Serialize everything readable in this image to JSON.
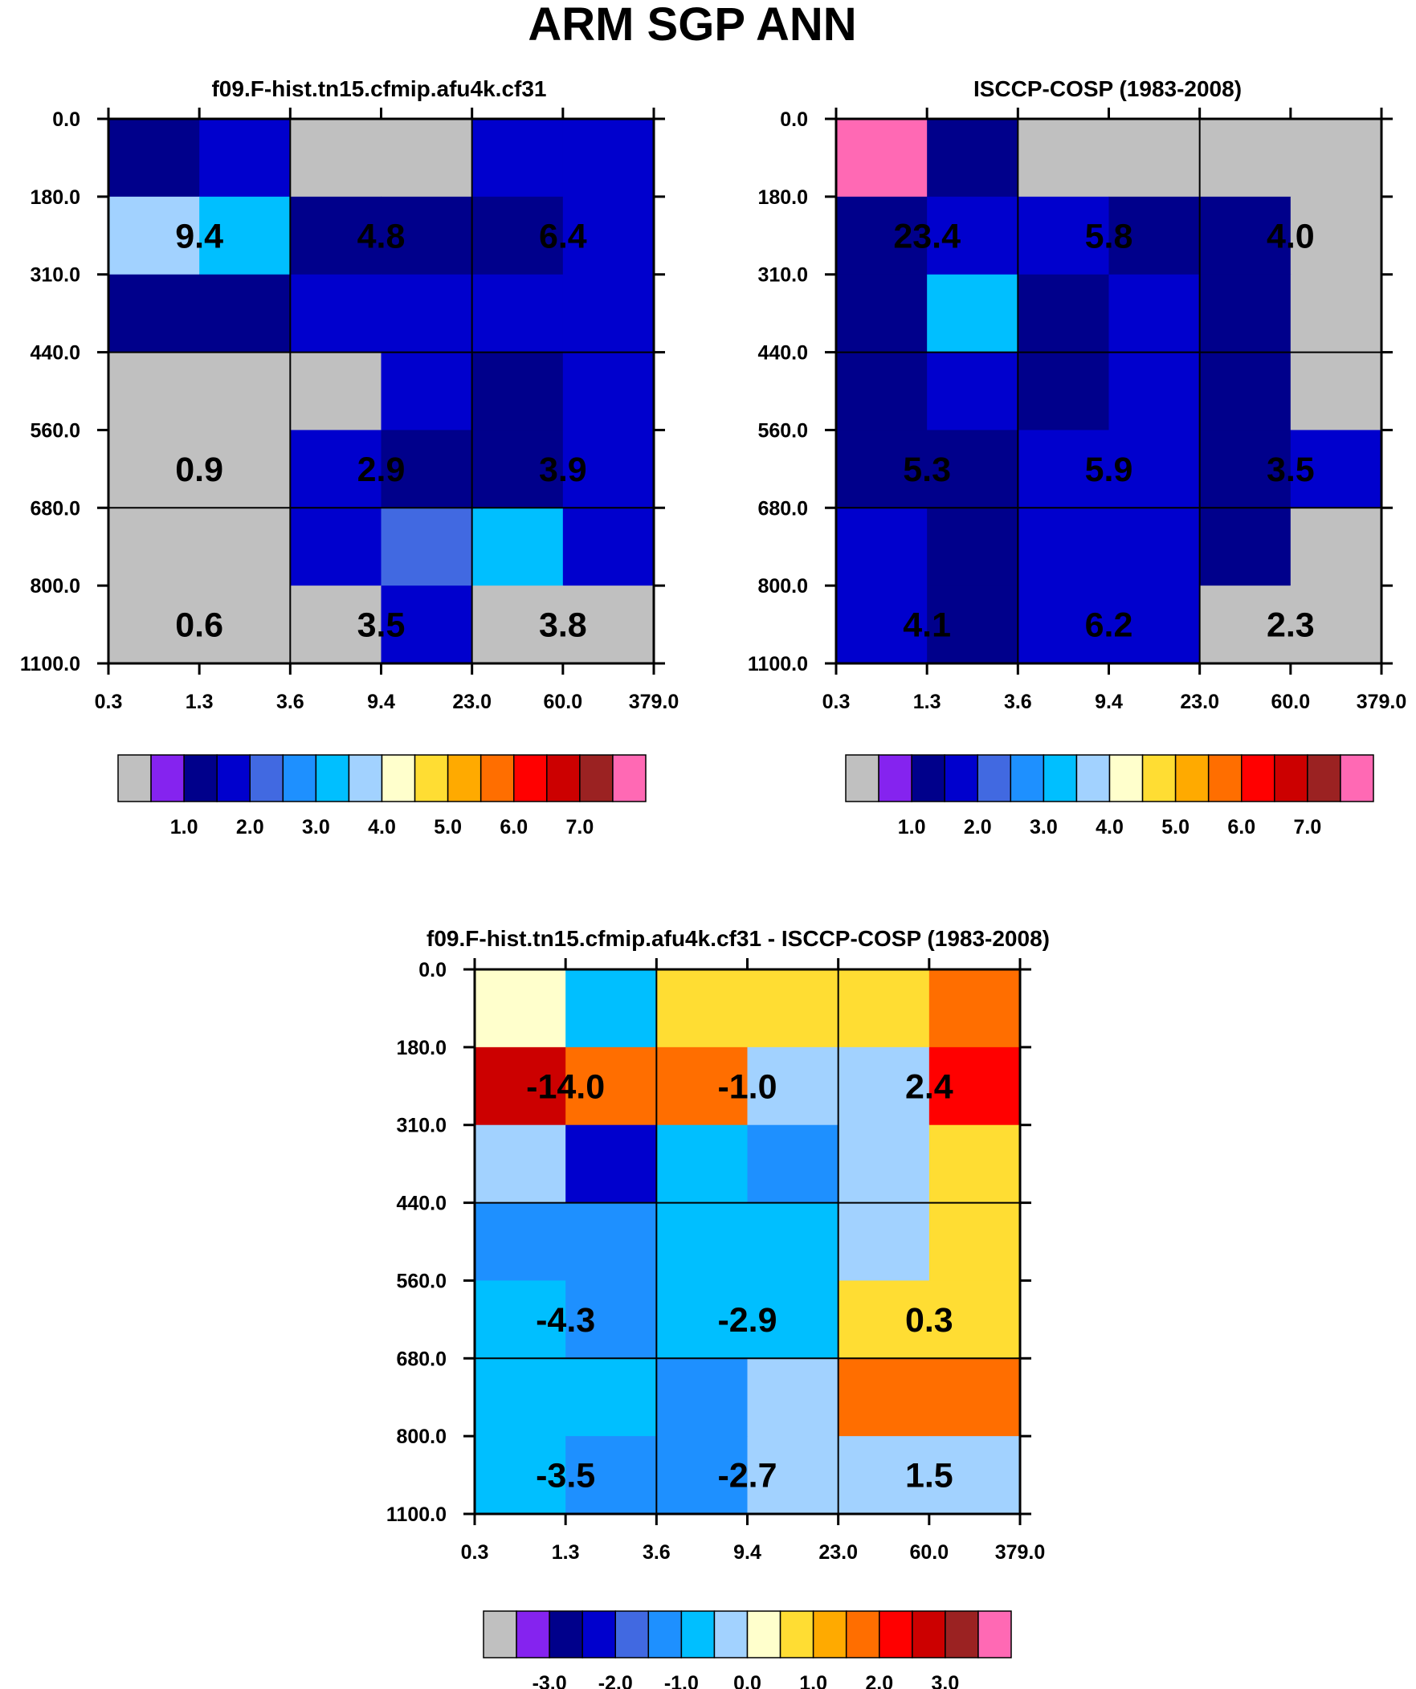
{
  "figure": {
    "title": "ARM SGP ANN"
  },
  "colorbar_colors": [
    "#c0c0c0",
    "#8523ef",
    "#00008b",
    "#0000cd",
    "#4169e1",
    "#1e90ff",
    "#00bfff",
    "#a2d2ff",
    "#ffffcc",
    "#ffdd33",
    "#ffaa00",
    "#ff6e00",
    "#ff0000",
    "#cc0000",
    "#9b2222",
    "#ff69b4"
  ],
  "chart_data": [
    {
      "type": "heatmap",
      "title": "f09.F-hist.tn15.cfmip.afu4k.cf31",
      "x_ticks": [
        "0.3",
        "1.3",
        "3.6",
        "9.4",
        "23.0",
        "60.0",
        "379.0"
      ],
      "y_ticks": [
        "0.0",
        "180.0",
        "310.0",
        "440.0",
        "560.0",
        "680.0",
        "800.0",
        "1100.0"
      ],
      "xlabel": "",
      "ylabel": "",
      "cells": [
        [
          0.6,
          1.0,
          0.0,
          0.0,
          1.0,
          1.0
        ],
        [
          3.2,
          2.6,
          0.6,
          0.6,
          0.5,
          1.2
        ],
        [
          0.6,
          0.6,
          1.0,
          1.0,
          1.0,
          1.0
        ],
        [
          0.0,
          0.0,
          0.0,
          1.0,
          0.6,
          1.0
        ],
        [
          0.0,
          0.0,
          1.0,
          0.6,
          0.6,
          1.0
        ],
        [
          0.0,
          0.0,
          1.0,
          1.5,
          2.5,
          1.0
        ],
        [
          0.0,
          0.0,
          0.0,
          1.0,
          0.0,
          0.0
        ]
      ],
      "block_labels": [
        {
          "row": 1,
          "col": 1,
          "text": "9.4"
        },
        {
          "row": 1,
          "col": 3,
          "text": "4.8"
        },
        {
          "row": 1,
          "col": 5,
          "text": "6.4"
        },
        {
          "row": 4,
          "col": 1,
          "text": "0.9"
        },
        {
          "row": 4,
          "col": 3,
          "text": "2.9"
        },
        {
          "row": 4,
          "col": 5,
          "text": "3.9"
        },
        {
          "row": 6,
          "col": 1,
          "text": "0.6"
        },
        {
          "row": 6,
          "col": 3,
          "text": "3.5"
        },
        {
          "row": 6,
          "col": 5,
          "text": "3.8"
        }
      ],
      "colorbar_labels": [
        "1.0",
        "2.0",
        "3.0",
        "4.0",
        "5.0",
        "6.0",
        "7.0"
      ]
    },
    {
      "type": "heatmap",
      "title": "ISCCP-COSP (1983-2008)",
      "x_ticks": [
        "0.3",
        "1.3",
        "3.6",
        "9.4",
        "23.0",
        "60.0",
        "379.0"
      ],
      "y_ticks": [
        "0.0",
        "180.0",
        "310.0",
        "440.0",
        "560.0",
        "680.0",
        "800.0",
        "1100.0"
      ],
      "xlabel": "",
      "ylabel": "",
      "cells": [
        [
          9.0,
          0.6,
          0.0,
          0.0,
          0.0,
          0.0
        ],
        [
          0.6,
          1.2,
          1.0,
          0.6,
          0.6,
          0.0
        ],
        [
          0.6,
          2.6,
          0.6,
          1.2,
          0.6,
          0.0
        ],
        [
          0.6,
          1.2,
          0.6,
          1.2,
          0.6,
          0.0
        ],
        [
          0.6,
          0.6,
          1.2,
          1.2,
          0.6,
          1.0
        ],
        [
          1.0,
          0.6,
          1.2,
          1.2,
          0.6,
          0.0
        ],
        [
          1.0,
          0.6,
          1.2,
          1.0,
          0.0,
          0.0
        ]
      ],
      "block_labels": [
        {
          "row": 1,
          "col": 1,
          "text": "23.4"
        },
        {
          "row": 1,
          "col": 3,
          "text": "5.8"
        },
        {
          "row": 1,
          "col": 5,
          "text": "4.0"
        },
        {
          "row": 4,
          "col": 1,
          "text": "5.3"
        },
        {
          "row": 4,
          "col": 3,
          "text": "5.9"
        },
        {
          "row": 4,
          "col": 5,
          "text": "3.5"
        },
        {
          "row": 6,
          "col": 1,
          "text": "4.1"
        },
        {
          "row": 6,
          "col": 3,
          "text": "6.2"
        },
        {
          "row": 6,
          "col": 5,
          "text": "2.3"
        }
      ],
      "colorbar_labels": [
        "1.0",
        "2.0",
        "3.0",
        "4.0",
        "5.0",
        "6.0",
        "7.0"
      ]
    },
    {
      "type": "heatmap",
      "title": "f09.F-hist.tn15.cfmip.afu4k.cf31 - ISCCP-COSP (1983-2008)",
      "x_ticks": [
        "0.3",
        "1.3",
        "3.6",
        "9.4",
        "23.0",
        "60.0",
        "379.0"
      ],
      "y_ticks": [
        "0.0",
        "180.0",
        "310.0",
        "440.0",
        "560.0",
        "680.0",
        "800.0",
        "1100.0"
      ],
      "xlabel": "",
      "ylabel": "",
      "cells": [
        [
          0.0,
          -1.0,
          0.5,
          0.5,
          0.5,
          1.5
        ],
        [
          2.5,
          1.5,
          1.5,
          -0.5,
          -0.5,
          2.0
        ],
        [
          -0.5,
          -2.5,
          -1.0,
          -1.5,
          -0.5,
          0.5
        ],
        [
          -1.5,
          -1.5,
          -1.0,
          -1.0,
          -0.5,
          0.5
        ],
        [
          -1.0,
          -1.5,
          -1.0,
          -1.0,
          0.5,
          0.5
        ],
        [
          -1.0,
          -1.0,
          -1.5,
          -0.5,
          1.5,
          1.5
        ],
        [
          -1.0,
          -1.5,
          -1.5,
          -0.5,
          -0.5,
          -0.5
        ]
      ],
      "block_labels": [
        {
          "row": 1,
          "col": 1,
          "text": "-14.0"
        },
        {
          "row": 1,
          "col": 3,
          "text": "-1.0"
        },
        {
          "row": 1,
          "col": 5,
          "text": "2.4"
        },
        {
          "row": 4,
          "col": 1,
          "text": "-4.3"
        },
        {
          "row": 4,
          "col": 3,
          "text": "-2.9"
        },
        {
          "row": 4,
          "col": 5,
          "text": "0.3"
        },
        {
          "row": 6,
          "col": 1,
          "text": "-3.5"
        },
        {
          "row": 6,
          "col": 3,
          "text": "-2.7"
        },
        {
          "row": 6,
          "col": 5,
          "text": "1.5"
        }
      ],
      "colorbar_labels": [
        "-3.0",
        "-2.0",
        "-1.0",
        "0.0",
        "1.0",
        "2.0",
        "3.0"
      ]
    }
  ]
}
